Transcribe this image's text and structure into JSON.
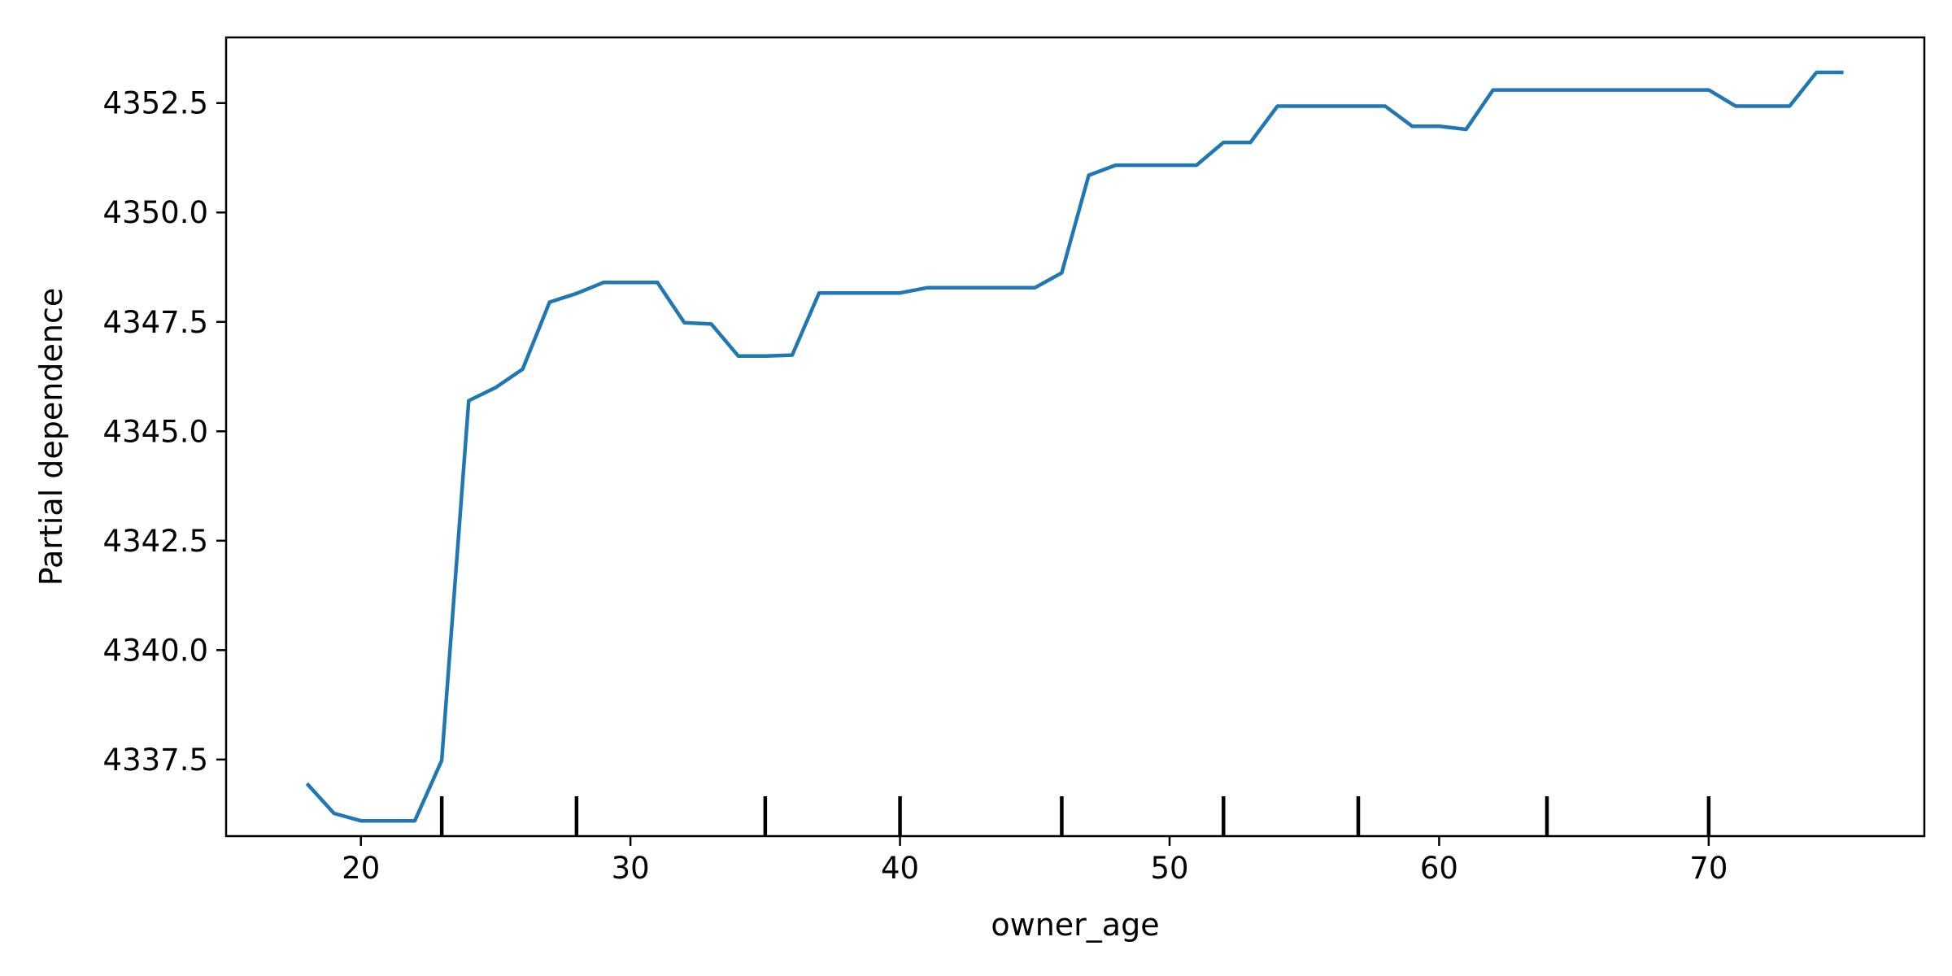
{
  "chart_data": {
    "type": "line",
    "title": "",
    "xlabel": "owner_age",
    "ylabel": "Partial dependence",
    "xlim": [
      15,
      78
    ],
    "ylim": [
      4335.75,
      4354.0
    ],
    "grid": false,
    "colors": {
      "line": "#1f77b4",
      "rug": "#000000",
      "axes": "#000000"
    },
    "x_ticks": [
      20,
      30,
      40,
      50,
      60,
      70
    ],
    "x_tick_labels": [
      "20",
      "30",
      "40",
      "50",
      "60",
      "70"
    ],
    "y_ticks": [
      4337.5,
      4340.0,
      4342.5,
      4345.0,
      4347.5,
      4350.0,
      4352.5
    ],
    "y_tick_labels": [
      "4337.5",
      "4340.0",
      "4342.5",
      "4345.0",
      "4347.5",
      "4350.0",
      "4352.5"
    ],
    "deciles": [
      23,
      28,
      35,
      40,
      46,
      52,
      57,
      64,
      70
    ],
    "series": [
      {
        "x": [
          18,
          19,
          20,
          21,
          22,
          23,
          24,
          25,
          26,
          27,
          28,
          29,
          30,
          31,
          32,
          33,
          34,
          35,
          36,
          37,
          38,
          39,
          40,
          41,
          42,
          43,
          44,
          45,
          46,
          47,
          48,
          49,
          50,
          51,
          52,
          53,
          54,
          55,
          56,
          57,
          58,
          59,
          60,
          61,
          62,
          63,
          64,
          65,
          66,
          67,
          68,
          69,
          70,
          71,
          72,
          73,
          74,
          75
        ],
        "values": [
          4336.95,
          4336.27,
          4336.1,
          4336.1,
          4336.1,
          4337.48,
          4345.7,
          4346.0,
          4346.42,
          4347.95,
          4348.15,
          4348.4,
          4348.4,
          4348.4,
          4347.48,
          4347.45,
          4346.72,
          4346.72,
          4346.74,
          4348.16,
          4348.16,
          4348.16,
          4348.16,
          4348.28,
          4348.28,
          4348.28,
          4348.28,
          4348.28,
          4348.62,
          4350.85,
          4351.08,
          4351.08,
          4351.08,
          4351.08,
          4351.6,
          4351.6,
          4352.43,
          4352.43,
          4352.43,
          4352.43,
          4352.43,
          4351.97,
          4351.97,
          4351.9,
          4352.8,
          4352.8,
          4352.8,
          4352.8,
          4352.8,
          4352.8,
          4352.8,
          4352.8,
          4352.8,
          4352.43,
          4352.43,
          4352.43,
          4353.2,
          4353.2
        ]
      }
    ]
  }
}
